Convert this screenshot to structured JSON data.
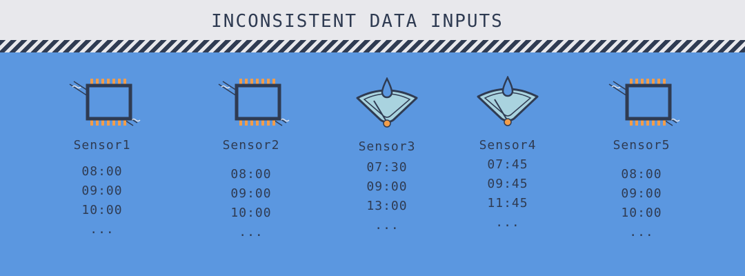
{
  "title": "INCONSISTENT DATA INPUTS",
  "colors": {
    "background": "#5b97e0",
    "header": "#e8e8ec",
    "text": "#2f3b52",
    "accent": "#f29d4a"
  },
  "sensors": [
    {
      "name": "Sensor1",
      "icon": "chip-icon",
      "times": [
        "08:00",
        "09:00",
        "10:00",
        "..."
      ]
    },
    {
      "name": "Sensor2",
      "icon": "chip-icon",
      "times": [
        "08:00",
        "09:00",
        "10:00",
        "..."
      ]
    },
    {
      "name": "Sensor3",
      "icon": "rain-gauge-icon",
      "times": [
        "07:30",
        "09:00",
        "13:00",
        "..."
      ]
    },
    {
      "name": "Sensor4",
      "icon": "rain-gauge-icon",
      "times": [
        "07:45",
        "09:45",
        "11:45",
        "..."
      ]
    },
    {
      "name": "Sensor5",
      "icon": "chip-icon",
      "times": [
        "08:00",
        "09:00",
        "10:00",
        "..."
      ]
    }
  ]
}
